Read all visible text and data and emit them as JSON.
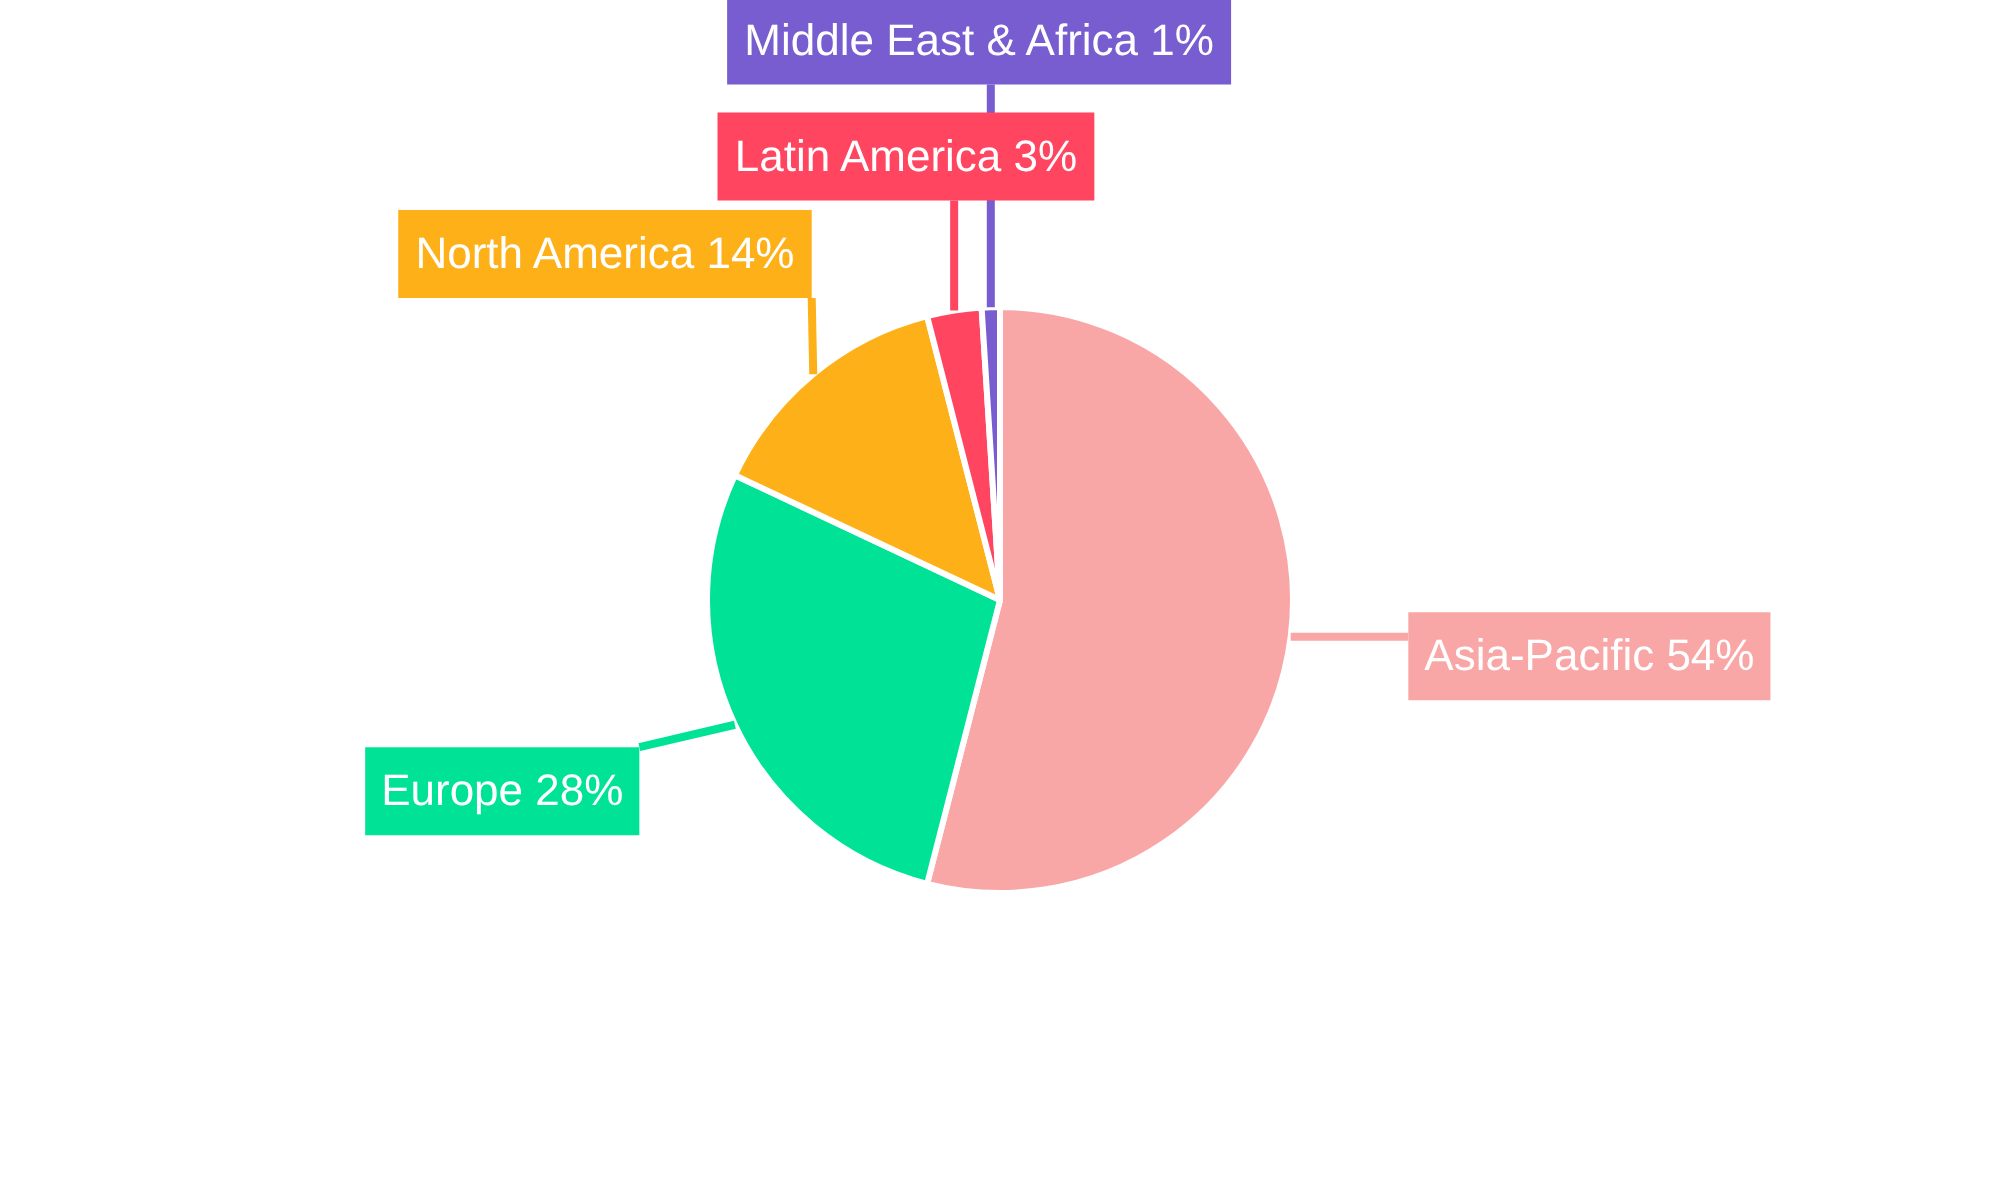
{
  "chart_data": {
    "type": "pie",
    "categories": [
      "Asia-Pacific",
      "Europe",
      "North America",
      "Latin America",
      "Middle East & Africa"
    ],
    "values": [
      54,
      28,
      14,
      3,
      1
    ],
    "colors": [
      "#f9a6a6",
      "#00e396",
      "#feb019",
      "#ff4560",
      "#775dd0"
    ],
    "value_labels": [
      "54%",
      "28%",
      "14%",
      "3%",
      "1%"
    ],
    "legend": false
  }
}
